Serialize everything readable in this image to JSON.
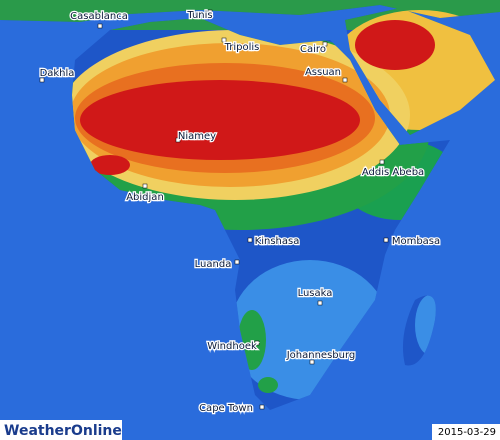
{
  "map": {
    "cities": [
      {
        "label": "Casablanca"
      },
      {
        "label": "Tunis"
      },
      {
        "label": "Tripolis"
      },
      {
        "label": "Cairo"
      },
      {
        "label": "Dakhla"
      },
      {
        "label": "Assuan"
      },
      {
        "label": "Niamey"
      },
      {
        "label": "Addis Abeba"
      },
      {
        "label": "Abidjan"
      },
      {
        "label": "Kinshasa"
      },
      {
        "label": "Mombasa"
      },
      {
        "label": "Luanda"
      },
      {
        "label": "Lusaka"
      },
      {
        "label": "Windhoek"
      },
      {
        "label": "Johannesburg"
      },
      {
        "label": "Cape Town"
      }
    ]
  },
  "date": "2015-03-29",
  "logo": "WeatherOnline"
}
